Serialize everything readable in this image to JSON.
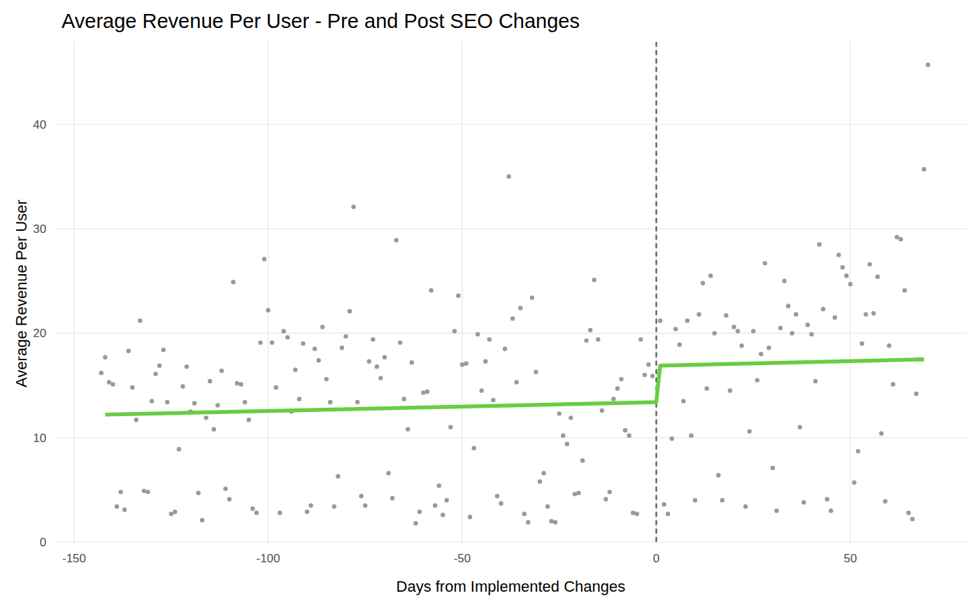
{
  "chart_data": {
    "type": "scatter",
    "title": "Average Revenue Per User - Pre and Post SEO Changes",
    "x_label": "Days from Implemented Changes",
    "y_label": "Average Revenue Per User",
    "xlim": [
      -155,
      80
    ],
    "ylim": [
      -0.3,
      47.9
    ],
    "xticks": [
      -150,
      -100,
      -50,
      0,
      50
    ],
    "yticks": [
      0,
      10,
      20,
      30,
      40
    ],
    "grid": true,
    "vline": 0,
    "series": [
      {
        "type": "scatter",
        "color": "#999999",
        "marker": "circle",
        "x": [
          -143,
          -142,
          -141,
          -140,
          -139,
          -138,
          -137,
          -136,
          -135,
          -134,
          -133,
          -132,
          -131,
          -130,
          -129,
          -128,
          -127,
          -126,
          -125,
          -124,
          -123,
          -122,
          -121,
          -120,
          -119,
          -118,
          -117,
          -116,
          -115,
          -114,
          -113,
          -112,
          -111,
          -110,
          -109,
          -108,
          -107,
          -106,
          -105,
          -104,
          -103,
          -102,
          -101,
          -100,
          -99,
          -98,
          -97,
          -96,
          -95,
          -94,
          -93,
          -92,
          -91,
          -90,
          -89,
          -88,
          -87,
          -86,
          -85,
          -84,
          -83,
          -82,
          -81,
          -80,
          -79,
          -78,
          -77,
          -76,
          -75,
          -74,
          -73,
          -72,
          -71,
          -70,
          -69,
          -68,
          -67,
          -66,
          -65,
          -64,
          -63,
          -62,
          -61,
          -60,
          -59,
          -58,
          -57,
          -56,
          -55,
          -54,
          -53,
          -52,
          -51,
          -50,
          -49,
          -48,
          -47,
          -46,
          -45,
          -44,
          -43,
          -42,
          -41,
          -40,
          -39,
          -38,
          -37,
          -36,
          -35,
          -34,
          -33,
          -32,
          -31,
          -30,
          -29,
          -28,
          -27,
          -26,
          -25,
          -24,
          -23,
          -22,
          -21,
          -20,
          -19,
          -18,
          -17,
          -16,
          -15,
          -14,
          -13,
          -12,
          -11,
          -10,
          -9,
          -8,
          -7,
          -6,
          -5,
          -4,
          -3,
          -2,
          -1,
          1,
          2,
          3,
          4,
          5,
          6,
          7,
          8,
          9,
          10,
          11,
          12,
          13,
          14,
          15,
          16,
          17,
          18,
          19,
          20,
          21,
          22,
          23,
          24,
          25,
          26,
          27,
          28,
          29,
          30,
          31,
          32,
          33,
          34,
          35,
          36,
          37,
          38,
          39,
          40,
          41,
          42,
          43,
          44,
          45,
          46,
          47,
          48,
          49,
          50,
          51,
          52,
          53,
          54,
          55,
          56,
          57,
          58,
          59,
          60,
          61,
          62,
          63,
          64,
          65,
          66,
          67,
          68,
          69,
          70
        ],
        "values": [
          16.2,
          17.7,
          15.3,
          15.1,
          3.4,
          4.8,
          3.1,
          18.3,
          14.8,
          11.7,
          21.2,
          4.9,
          4.8,
          13.5,
          16.1,
          16.9,
          18.4,
          13.4,
          2.7,
          2.9,
          8.9,
          14.9,
          16.8,
          12.5,
          13.3,
          4.7,
          2.1,
          11.9,
          15.4,
          10.8,
          13.1,
          16.4,
          5.1,
          4.1,
          24.9,
          15.2,
          15.1,
          13.4,
          11.7,
          3.2,
          2.8,
          19.1,
          27.1,
          22.2,
          19.1,
          14.8,
          2.8,
          20.2,
          19.6,
          12.5,
          16.5,
          13.7,
          19.0,
          2.9,
          3.5,
          18.5,
          17.4,
          20.6,
          15.6,
          13.4,
          3.4,
          6.3,
          18.6,
          19.7,
          22.1,
          32.1,
          13.4,
          4.4,
          3.5,
          17.3,
          19.4,
          16.8,
          15.7,
          17.7,
          6.6,
          4.2,
          28.9,
          19.1,
          13.7,
          10.8,
          17.2,
          1.8,
          2.9,
          14.3,
          14.4,
          24.1,
          3.5,
          5.4,
          2.6,
          4.0,
          11.0,
          20.2,
          23.6,
          17.0,
          17.1,
          2.4,
          9.0,
          19.9,
          14.5,
          17.3,
          19.4,
          13.6,
          4.4,
          3.7,
          18.5,
          35.0,
          21.4,
          15.3,
          22.4,
          2.7,
          1.9,
          23.4,
          16.3,
          5.8,
          6.6,
          3.4,
          2.0,
          1.9,
          12.3,
          10.2,
          9.4,
          11.9,
          4.6,
          4.7,
          7.8,
          19.3,
          20.3,
          25.1,
          19.4,
          12.6,
          4.1,
          4.8,
          13.7,
          14.7,
          15.6,
          10.7,
          10.2,
          2.8,
          2.7,
          19.4,
          16.0,
          17.0,
          15.9,
          21.2,
          3.6,
          2.7,
          9.9,
          20.4,
          18.9,
          13.5,
          21.2,
          10.2,
          4.0,
          21.8,
          24.8,
          14.7,
          25.5,
          20.0,
          6.4,
          4.0,
          21.7,
          14.5,
          20.6,
          20.2,
          18.8,
          3.4,
          10.6,
          20.2,
          15.5,
          18.0,
          26.7,
          18.6,
          7.1,
          3.0,
          20.5,
          25.0,
          22.6,
          20.0,
          21.8,
          11.0,
          3.8,
          20.8,
          19.9,
          15.4,
          28.5,
          22.3,
          4.1,
          3.0,
          21.5,
          27.5,
          26.3,
          25.5,
          24.7,
          5.7,
          8.7,
          19.0,
          21.8,
          26.6,
          21.9,
          25.4,
          10.4,
          3.9,
          18.8,
          15.1,
          29.2,
          29.0,
          24.1,
          2.8,
          2.2,
          14.2,
          17.5,
          35.7,
          45.7
        ]
      },
      {
        "type": "line",
        "color": "#6acc45",
        "line_style": "solid",
        "x": [
          -142,
          0,
          1,
          69
        ],
        "values": [
          12.2,
          13.4,
          16.9,
          17.5
        ]
      }
    ]
  }
}
